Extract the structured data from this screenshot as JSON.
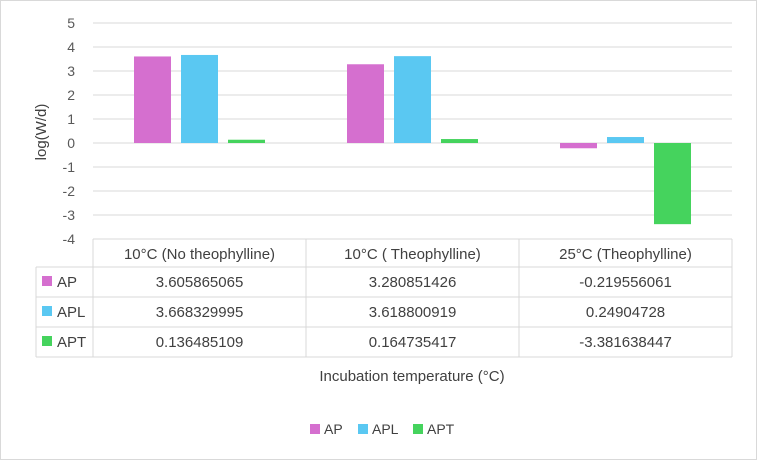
{
  "chart_data": {
    "type": "bar",
    "categories": [
      "10°C (No theophylline)",
      "10°C ( Theophylline)",
      "25°C (Theophylline)"
    ],
    "series": [
      {
        "name": "AP",
        "color": "#d56fcf",
        "values": [
          3.605865065,
          3.280851426,
          -0.219556061
        ],
        "labels": [
          "3.605865065",
          "3.280851426",
          "-0.219556061"
        ]
      },
      {
        "name": "APL",
        "color": "#5ac8f2",
        "values": [
          3.668329995,
          3.618800919,
          0.24904728
        ],
        "labels": [
          "3.668329995",
          "3.618800919",
          "0.24904728"
        ]
      },
      {
        "name": "APT",
        "color": "#45d35d",
        "values": [
          0.136485109,
          0.164735417,
          -3.381638447
        ],
        "labels": [
          "0.136485109",
          "0.164735417",
          "-3.381638447"
        ]
      }
    ],
    "ylim": [
      -4,
      5
    ],
    "yticks": [
      "5",
      "4",
      "3",
      "2",
      "1",
      "0",
      "-1",
      "-2",
      "-3",
      "-4"
    ],
    "ylabel": "log(W/d)",
    "xlabel": "Incubation temperature (°C)",
    "legend_position": "bottom",
    "grid": true,
    "data_table": true
  }
}
